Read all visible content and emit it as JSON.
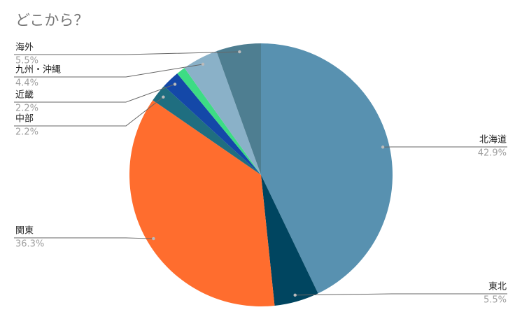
{
  "chart_data": {
    "type": "pie",
    "title": "どこから？",
    "categories": [
      "北海道",
      "東北",
      "関東",
      "中部",
      "近畿",
      null,
      "九州・沖縄",
      "海外"
    ],
    "values": [
      42.9,
      5.5,
      36.3,
      2.2,
      2.2,
      1.1,
      4.4,
      5.5
    ],
    "value_labels": [
      "42.9%",
      "5.5%",
      "36.3%",
      "2.2%",
      "2.2%",
      null,
      "4.4%",
      "5.5%"
    ],
    "colors": [
      "#5891b0",
      "#004560",
      "#ff6d2e",
      "#1f6e80",
      "#1448a8",
      "#3ddc84",
      "#8ab1c8",
      "#4e7e91"
    ]
  }
}
